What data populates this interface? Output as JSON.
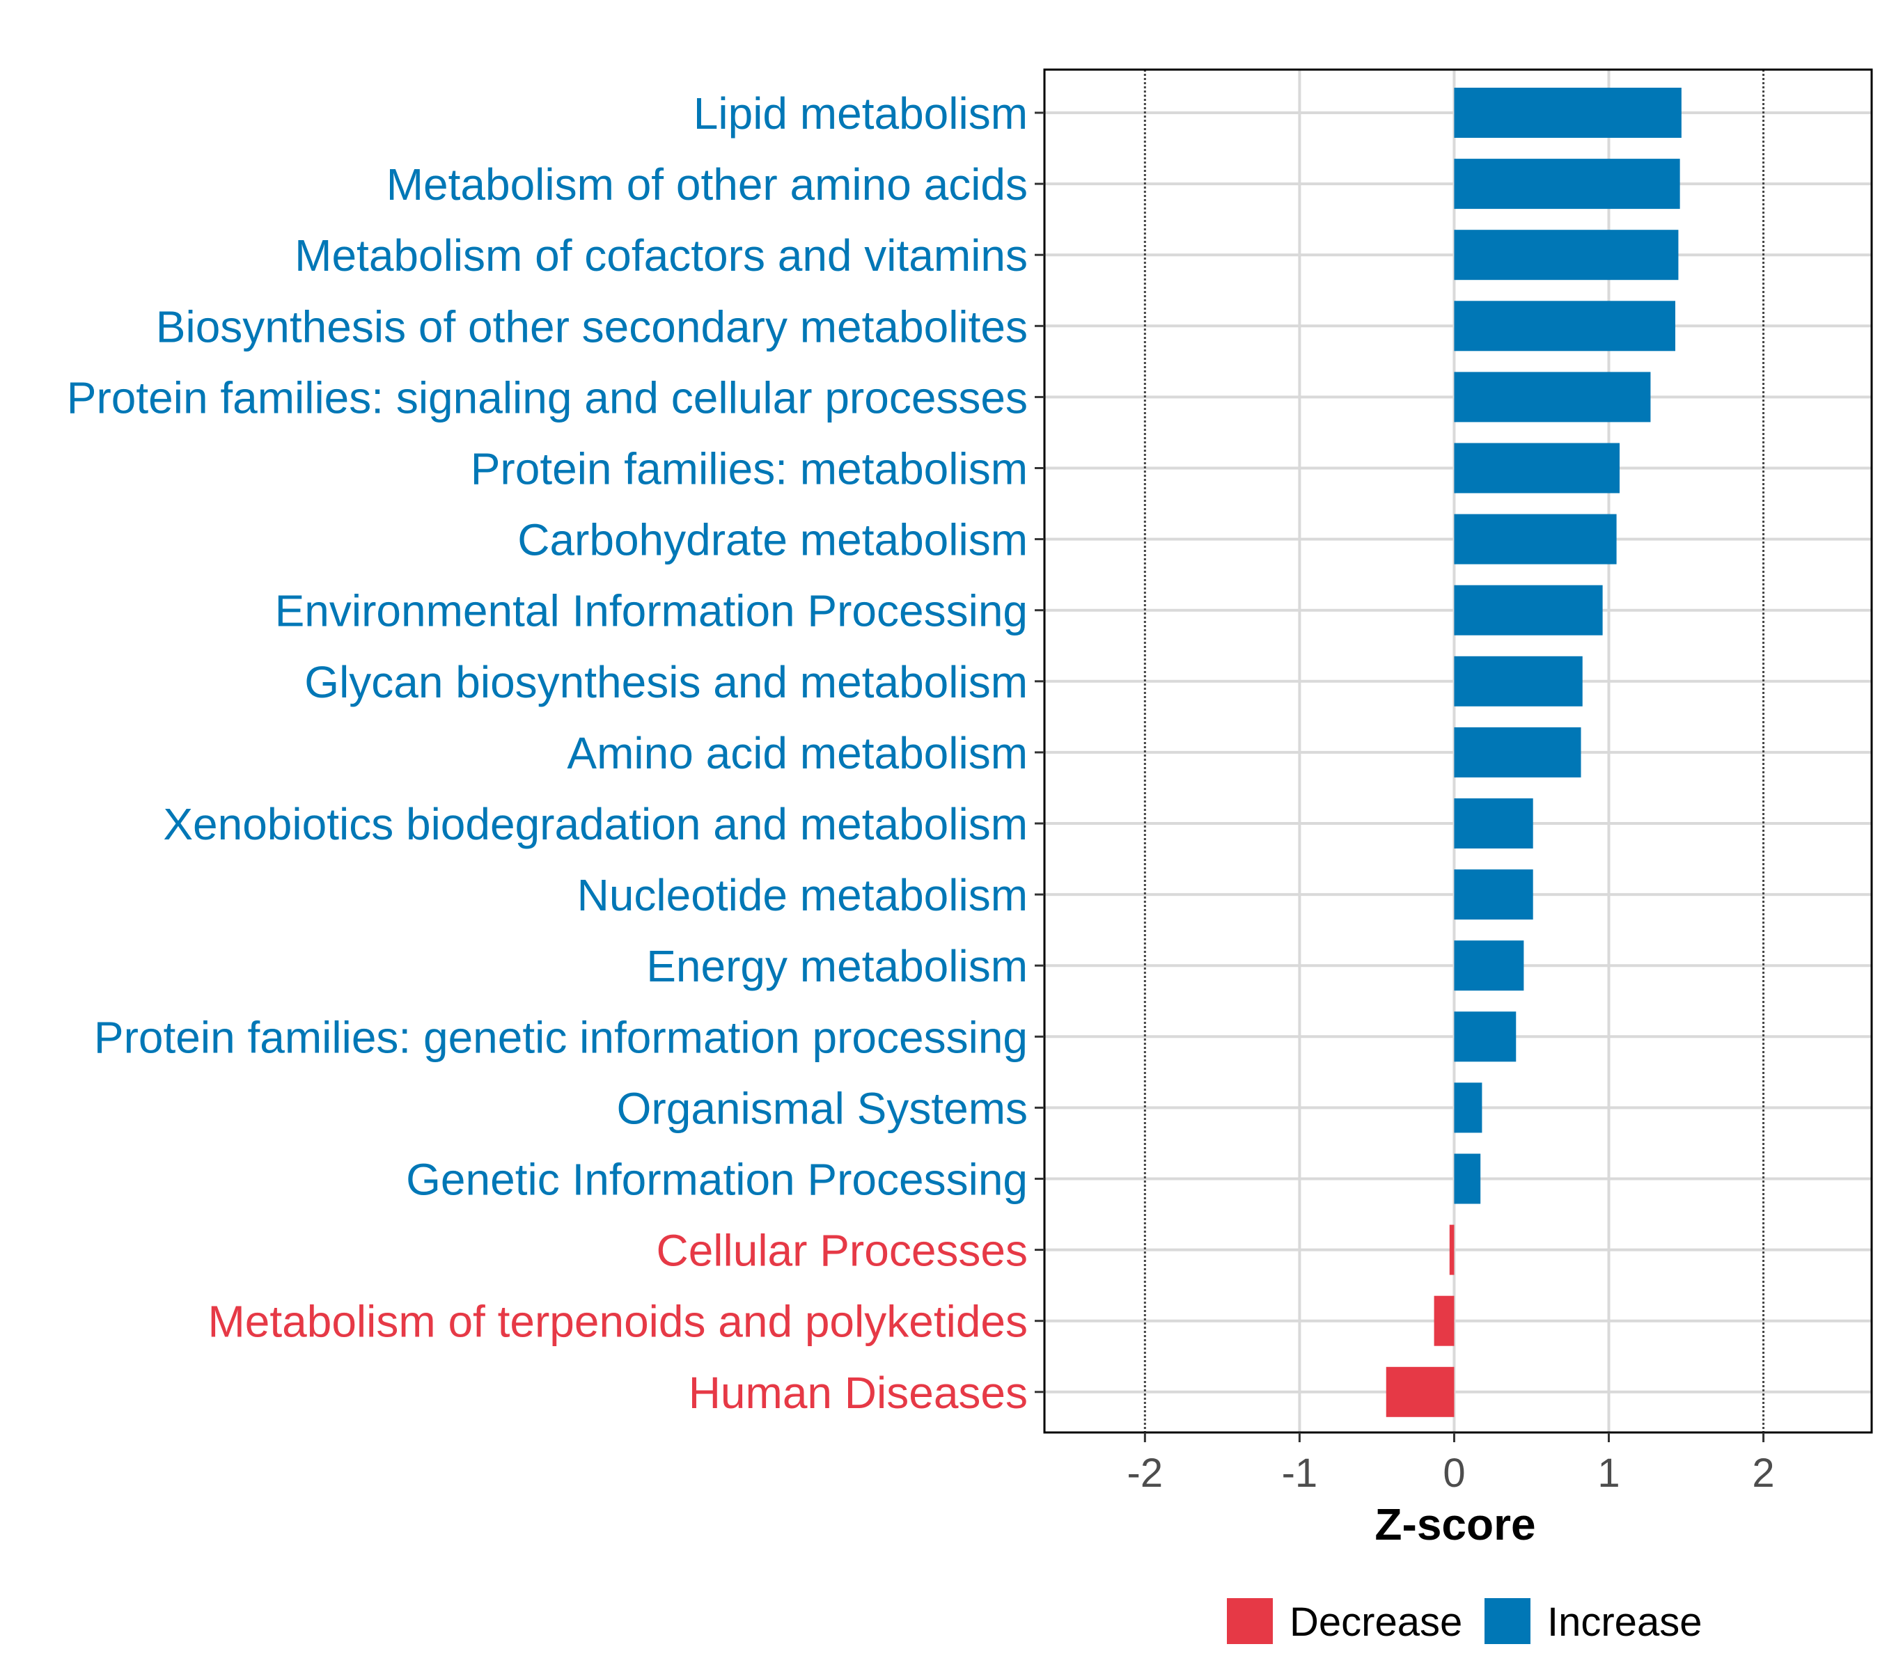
{
  "chart_data": {
    "type": "bar",
    "orientation": "horizontal",
    "title": "",
    "xlabel": "Z-score",
    "ylabel": "",
    "xlim": [
      -2.65,
      2.7
    ],
    "xticks": [
      -2,
      -1,
      0,
      1,
      2
    ],
    "xtick_labels": [
      "-2",
      "-1",
      "0",
      "1",
      "2"
    ],
    "reference_lines": [
      -2,
      2
    ],
    "grid": true,
    "legend": {
      "position": "bottom",
      "entries": [
        {
          "label": "Decrease",
          "color": "#E63946"
        },
        {
          "label": "Increase",
          "color": "#0077B6"
        }
      ]
    },
    "categories": [
      "Lipid metabolism",
      "Metabolism of other amino acids",
      "Metabolism of cofactors and vitamins",
      "Biosynthesis of other secondary metabolites",
      "Protein families: signaling and cellular processes",
      "Protein families: metabolism",
      "Carbohydrate metabolism",
      "Environmental Information Processing",
      "Glycan biosynthesis and metabolism",
      "Amino acid metabolism",
      "Xenobiotics biodegradation and metabolism",
      "Nucleotide metabolism",
      "Energy metabolism",
      "Protein families: genetic information processing",
      "Organismal Systems",
      "Genetic Information Processing",
      "Cellular Processes",
      "Metabolism of terpenoids and polyketides",
      "Human Diseases"
    ],
    "values": [
      1.47,
      1.46,
      1.45,
      1.43,
      1.27,
      1.07,
      1.05,
      0.96,
      0.83,
      0.82,
      0.51,
      0.51,
      0.45,
      0.4,
      0.18,
      0.17,
      -0.03,
      -0.13,
      -0.44
    ],
    "groups": [
      "Increase",
      "Increase",
      "Increase",
      "Increase",
      "Increase",
      "Increase",
      "Increase",
      "Increase",
      "Increase",
      "Increase",
      "Increase",
      "Increase",
      "Increase",
      "Increase",
      "Increase",
      "Increase",
      "Decrease",
      "Decrease",
      "Decrease"
    ]
  }
}
